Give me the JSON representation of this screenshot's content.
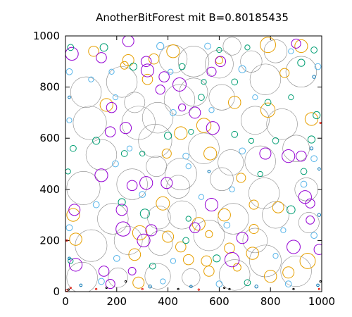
{
  "chart_data": {
    "type": "scatter",
    "title": "AnotherBitForest mit B=0.80185435",
    "xlabel": "",
    "ylabel": "",
    "xlim": [
      0,
      1000
    ],
    "ylim": [
      0,
      1000
    ],
    "x_ticks": [
      0,
      200,
      400,
      600,
      800,
      1000
    ],
    "y_ticks": [
      0,
      200,
      400,
      600,
      800,
      1000
    ],
    "grid": false,
    "legend": "none",
    "colors": {
      "big": "#888888",
      "orange": "#e69f00",
      "purple": "#9400d3",
      "teal": "#009e73",
      "cyan": "#56b4e9",
      "blue": "#0072b2",
      "red": "#e51e10",
      "black": "#000000"
    },
    "series": [
      {
        "color_key": "big",
        "circles": [
          [
            65,
            55,
            60
          ],
          [
            205,
            55,
            38
          ],
          [
            360,
            60,
            50
          ],
          [
            490,
            55,
            35
          ],
          [
            660,
            65,
            60
          ],
          [
            900,
            80,
            60
          ],
          [
            780,
            120,
            62
          ],
          [
            100,
            180,
            62
          ],
          [
            245,
            200,
            55
          ],
          [
            370,
            190,
            48
          ],
          [
            560,
            220,
            60
          ],
          [
            740,
            200,
            48
          ],
          [
            185,
            285,
            60
          ],
          [
            365,
            290,
            45
          ],
          [
            455,
            300,
            55
          ],
          [
            655,
            285,
            60
          ],
          [
            820,
            300,
            52
          ],
          [
            950,
            270,
            40
          ],
          [
            70,
            405,
            65
          ],
          [
            260,
            420,
            60
          ],
          [
            440,
            410,
            45
          ],
          [
            610,
            440,
            45
          ],
          [
            775,
            385,
            60
          ],
          [
            940,
            400,
            45
          ],
          [
            140,
            535,
            60
          ],
          [
            355,
            490,
            40
          ],
          [
            350,
            590,
            65
          ],
          [
            540,
            560,
            60
          ],
          [
            645,
            505,
            50
          ],
          [
            760,
            510,
            60
          ],
          [
            900,
            560,
            52
          ],
          [
            95,
            660,
            65
          ],
          [
            285,
            660,
            65
          ],
          [
            445,
            750,
            60
          ],
          [
            610,
            760,
            50
          ],
          [
            740,
            670,
            55
          ],
          [
            845,
            655,
            60
          ],
          [
            80,
            780,
            60
          ],
          [
            220,
            820,
            60
          ],
          [
            500,
            780,
            55
          ],
          [
            600,
            890,
            55
          ],
          [
            780,
            830,
            60
          ],
          [
            920,
            860,
            60
          ],
          [
            270,
            740,
            40
          ],
          [
            420,
            910,
            55
          ],
          [
            360,
            680,
            60
          ],
          [
            450,
            460,
            62
          ],
          [
            500,
            900,
            60
          ],
          [
            725,
            900,
            42
          ],
          [
            650,
            960,
            35
          ],
          [
            820,
            940,
            45
          ]
        ]
      },
      {
        "color_key": "orange",
        "circles": [
          [
            30,
            300,
            25
          ],
          [
            160,
            730,
            25
          ],
          [
            400,
            215,
            22
          ],
          [
            480,
            125,
            20
          ],
          [
            685,
            445,
            18
          ],
          [
            600,
            905,
            14
          ],
          [
            735,
            340,
            18
          ],
          [
            830,
            330,
            22
          ],
          [
            960,
            675,
            25
          ],
          [
            855,
            855,
            18
          ],
          [
            395,
            540,
            18
          ],
          [
            520,
            265,
            25
          ],
          [
            560,
            225,
            14
          ],
          [
            790,
            965,
            30
          ],
          [
            640,
            170,
            20
          ],
          [
            450,
            620,
            25
          ],
          [
            40,
            205,
            24
          ],
          [
            345,
            910,
            20
          ],
          [
            110,
            940,
            20
          ],
          [
            450,
            175,
            20
          ],
          [
            290,
            230,
            28
          ],
          [
            620,
            300,
            24
          ],
          [
            565,
            540,
            25
          ],
          [
            320,
            830,
            20
          ],
          [
            270,
            145,
            23
          ],
          [
            945,
            120,
            30
          ],
          [
            870,
            75,
            22
          ],
          [
            670,
            95,
            15
          ],
          [
            920,
            960,
            25
          ],
          [
            735,
            245,
            18
          ],
          [
            550,
            120,
            20
          ],
          [
            245,
            905,
            22
          ],
          [
            420,
            940,
            25
          ],
          [
            560,
            80,
            20
          ],
          [
            660,
            740,
            24
          ],
          [
            800,
            60,
            24
          ],
          [
            380,
            345,
            26
          ],
          [
            230,
            885,
            15
          ],
          [
            285,
            35,
            22
          ],
          [
            540,
            650,
            28
          ],
          [
            730,
            150,
            24
          ],
          [
            790,
            710,
            28
          ]
        ]
      },
      {
        "color_key": "purple",
        "circles": [
          [
            25,
            930,
            25
          ],
          [
            140,
            915,
            20
          ],
          [
            245,
            980,
            22
          ],
          [
            320,
            865,
            25
          ],
          [
            385,
            840,
            20
          ],
          [
            455,
            720,
            14
          ],
          [
            505,
            700,
            22
          ],
          [
            570,
            340,
            25
          ],
          [
            780,
            540,
            22
          ],
          [
            870,
            530,
            25
          ],
          [
            935,
            370,
            25
          ],
          [
            955,
            345,
            18
          ],
          [
            175,
            625,
            20
          ],
          [
            235,
            640,
            22
          ],
          [
            260,
            415,
            20
          ],
          [
            315,
            425,
            25
          ],
          [
            395,
            425,
            22
          ],
          [
            575,
            640,
            25
          ],
          [
            305,
            200,
            25
          ],
          [
            335,
            240,
            22
          ],
          [
            650,
            125,
            28
          ],
          [
            690,
            210,
            22
          ],
          [
            225,
            245,
            28
          ],
          [
            40,
            105,
            25
          ],
          [
            35,
            320,
            22
          ],
          [
            180,
            720,
            20
          ],
          [
            890,
            175,
            26
          ],
          [
            990,
            165,
            20
          ],
          [
            955,
            280,
            16
          ],
          [
            150,
            80,
            20
          ],
          [
            140,
            455,
            25
          ],
          [
            505,
            250,
            20
          ],
          [
            315,
            900,
            20
          ],
          [
            220,
            320,
            22
          ],
          [
            445,
            810,
            26
          ],
          [
            920,
            530,
            20
          ],
          [
            370,
            790,
            18
          ],
          [
            900,
            970,
            18
          ],
          [
            175,
            30,
            18
          ],
          [
            260,
            80,
            15
          ],
          [
            605,
            900,
            20
          ],
          [
            570,
            860,
            18
          ]
        ]
      },
      {
        "color_key": "teal",
        "circles": [
          [
            20,
            955,
            12
          ],
          [
            150,
            955,
            15
          ],
          [
            455,
            880,
            12
          ],
          [
            600,
            945,
            10
          ],
          [
            710,
            955,
            10
          ],
          [
            920,
            895,
            14
          ],
          [
            970,
            945,
            12
          ],
          [
            265,
            880,
            14
          ],
          [
            540,
            820,
            10
          ],
          [
            660,
            820,
            12
          ],
          [
            725,
            590,
            10
          ],
          [
            820,
            590,
            12
          ],
          [
            960,
            595,
            14
          ],
          [
            120,
            590,
            14
          ],
          [
            30,
            560,
            12
          ],
          [
            10,
            470,
            10
          ],
          [
            220,
            350,
            14
          ],
          [
            310,
            305,
            18
          ],
          [
            480,
            285,
            10
          ],
          [
            590,
            130,
            14
          ],
          [
            710,
            35,
            12
          ],
          [
            980,
            690,
            14
          ],
          [
            880,
            320,
            16
          ],
          [
            20,
            120,
            10
          ],
          [
            340,
            100,
            12
          ],
          [
            470,
            200,
            12
          ],
          [
            760,
            460,
            10
          ],
          [
            230,
            540,
            12
          ],
          [
            300,
            540,
            10
          ],
          [
            400,
            610,
            14
          ],
          [
            660,
            615,
            12
          ],
          [
            490,
            625,
            10
          ],
          [
            530,
            760,
            12
          ],
          [
            880,
            760,
            10
          ],
          [
            790,
            740,
            12
          ],
          [
            930,
            470,
            12
          ]
        ]
      },
      {
        "color_key": "cyan",
        "circles": [
          [
            15,
            860,
            12
          ],
          [
            180,
            860,
            10
          ],
          [
            410,
            860,
            10
          ],
          [
            370,
            960,
            14
          ],
          [
            555,
            960,
            12
          ],
          [
            690,
            870,
            14
          ],
          [
            880,
            940,
            10
          ],
          [
            985,
            880,
            12
          ],
          [
            195,
            760,
            10
          ],
          [
            420,
            700,
            12
          ],
          [
            690,
            550,
            12
          ],
          [
            970,
            520,
            12
          ],
          [
            15,
            670,
            10
          ],
          [
            195,
            500,
            12
          ],
          [
            470,
            530,
            12
          ],
          [
            650,
            400,
            10
          ],
          [
            930,
            420,
            12
          ],
          [
            15,
            250,
            12
          ],
          [
            200,
            130,
            12
          ],
          [
            420,
            120,
            10
          ],
          [
            630,
            260,
            12
          ],
          [
            850,
            240,
            10
          ],
          [
            970,
            220,
            12
          ],
          [
            140,
            40,
            12
          ],
          [
            380,
            40,
            10
          ],
          [
            600,
            30,
            12
          ],
          [
            870,
            30,
            12
          ],
          [
            820,
            140,
            10
          ],
          [
            530,
            370,
            10
          ],
          [
            300,
            380,
            12
          ],
          [
            120,
            340,
            12
          ],
          [
            100,
            830,
            10
          ],
          [
            570,
            710,
            10
          ],
          [
            740,
            760,
            10
          ],
          [
            480,
            490,
            10
          ],
          [
            250,
            560,
            10
          ]
        ]
      },
      {
        "color_key": "blue",
        "circles": [
          [
            960,
            560,
            6
          ],
          [
            990,
            480,
            5
          ],
          [
            990,
            300,
            6
          ],
          [
            15,
            130,
            5
          ],
          [
            60,
            25,
            5
          ],
          [
            330,
            20,
            6
          ],
          [
            490,
            20,
            5
          ],
          [
            745,
            20,
            6
          ],
          [
            985,
            25,
            5
          ],
          [
            15,
            760,
            5
          ],
          [
            970,
            840,
            6
          ],
          [
            560,
            470,
            5
          ]
        ]
      },
      {
        "color_key": "red",
        "circles": [
          [
            5,
            5,
            4
          ],
          [
            20,
            15,
            3
          ],
          [
            120,
            10,
            3
          ],
          [
            300,
            10,
            3
          ],
          [
            520,
            8,
            3
          ],
          [
            990,
            10,
            3
          ],
          [
            5,
            200,
            3
          ],
          [
            995,
            660,
            3
          ]
        ]
      },
      {
        "color_key": "black",
        "circles": [
          [
            12,
            8,
            3
          ],
          [
            160,
            15,
            3
          ],
          [
            235,
            40,
            3
          ],
          [
            440,
            10,
            3
          ],
          [
            640,
            10,
            3
          ],
          [
            890,
            10,
            3
          ],
          [
            995,
            40,
            3
          ],
          [
            620,
            15,
            3
          ]
        ]
      }
    ]
  }
}
